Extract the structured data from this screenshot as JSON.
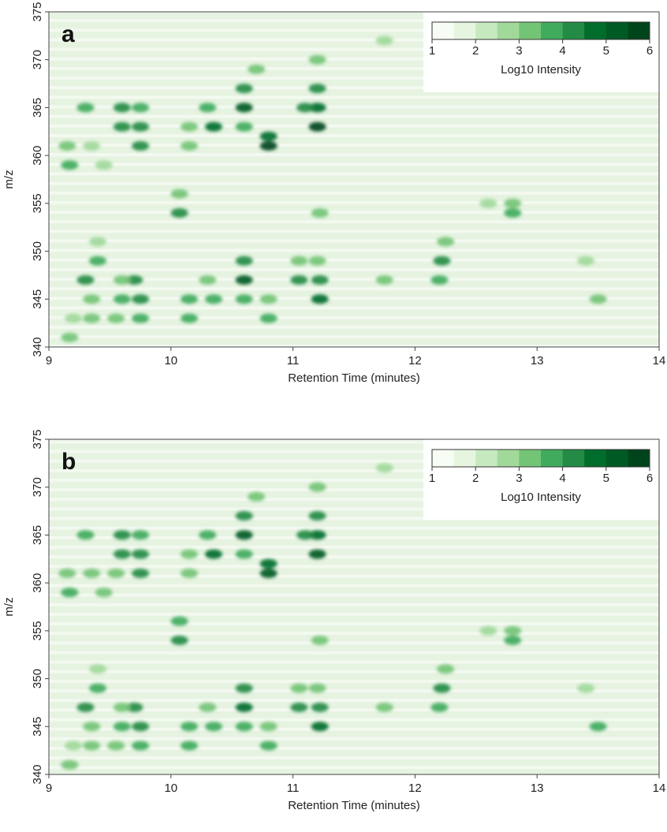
{
  "chart_data": [
    {
      "type": "heatmap",
      "panel_label": "a",
      "xlabel": "Retention Time (minutes)",
      "ylabel": "m/z",
      "xlim": [
        9,
        14
      ],
      "ylim": [
        340,
        375
      ],
      "xticks": [
        9,
        10,
        11,
        12,
        13,
        14
      ],
      "yticks": [
        340,
        345,
        350,
        355,
        360,
        365,
        370,
        375
      ],
      "colorbar": {
        "label": "Log10 Intensity",
        "lim": [
          1,
          6
        ],
        "ticks": [
          1,
          2,
          3,
          4,
          5,
          6
        ],
        "colors": [
          "#f7fcf5",
          "#e5f5e0",
          "#c7e9c0",
          "#a1d99b",
          "#74c476",
          "#41ab5d",
          "#238b45",
          "#006d2c",
          "#005a24",
          "#00441b"
        ]
      },
      "points": {
        "x": [
          10.6,
          10.6,
          10.6,
          10.8,
          10.8,
          11.2,
          11.2,
          11.2,
          11.1,
          10.35,
          10.3,
          9.6,
          9.6,
          9.75,
          9.75,
          9.75,
          9.3,
          9.15,
          9.17,
          9.45,
          9.35,
          10.07,
          10.07,
          10.15,
          10.15,
          10.7,
          9.3,
          9.4,
          9.4,
          9.6,
          9.7,
          9.75,
          9.75,
          9.6,
          9.55,
          9.35,
          9.35,
          9.17,
          9.2,
          10.15,
          10.15,
          10.35,
          10.3,
          10.6,
          10.6,
          10.6,
          10.8,
          10.8,
          11.05,
          11.05,
          11.22,
          11.22,
          11.2,
          11.22,
          11.75,
          12.22,
          12.2,
          12.25,
          12.8,
          12.8,
          13.5,
          13.4,
          12.6,
          11.75,
          11.2
        ],
        "y": [
          365,
          367,
          363,
          361,
          362,
          363,
          365,
          367,
          365,
          363,
          365,
          365,
          363,
          363,
          361,
          365,
          365,
          361,
          359,
          359,
          361,
          354,
          356,
          361,
          363,
          369,
          347,
          349,
          351,
          345,
          347,
          345,
          343,
          347,
          343,
          345,
          343,
          341,
          343,
          345,
          343,
          345,
          347,
          347,
          349,
          345,
          343,
          345,
          347,
          349,
          345,
          347,
          349,
          354,
          347,
          349,
          347,
          351,
          354,
          355,
          345,
          349,
          355,
          372,
          370
        ],
        "values": [
          5.2,
          4.2,
          3.8,
          5.5,
          4.5,
          5.5,
          4.5,
          4.0,
          4.3,
          4.8,
          3.5,
          4.2,
          4.2,
          4.0,
          4.3,
          3.5,
          3.5,
          3.2,
          3.8,
          2.8,
          2.8,
          4.2,
          3.4,
          3.0,
          3.0,
          3.2,
          4.0,
          3.5,
          2.5,
          3.5,
          4.2,
          4.4,
          3.8,
          3.2,
          3.0,
          3.0,
          3.0,
          3.4,
          2.8,
          3.8,
          3.6,
          3.8,
          3.0,
          5.0,
          4.0,
          3.8,
          3.6,
          3.2,
          4.3,
          3.2,
          4.6,
          4.0,
          3.3,
          3.0,
          3.0,
          4.2,
          3.6,
          3.2,
          3.6,
          3.2,
          3.4,
          2.7,
          2.6,
          2.5,
          3.0
        ]
      }
    },
    {
      "type": "heatmap",
      "panel_label": "b",
      "xlabel": "Retention Time (minutes)",
      "ylabel": "m/z",
      "xlim": [
        9,
        14
      ],
      "ylim": [
        340,
        375
      ],
      "xticks": [
        9,
        10,
        11,
        12,
        13,
        14
      ],
      "yticks": [
        340,
        345,
        350,
        355,
        360,
        365,
        370,
        375
      ],
      "colorbar": {
        "label": "Log10 Intensity",
        "lim": [
          1,
          6
        ],
        "ticks": [
          1,
          2,
          3,
          4,
          5,
          6
        ],
        "colors": [
          "#f7fcf5",
          "#e5f5e0",
          "#c7e9c0",
          "#a1d99b",
          "#74c476",
          "#41ab5d",
          "#238b45",
          "#006d2c",
          "#005a24",
          "#00441b"
        ]
      },
      "points": {
        "x": [
          10.6,
          10.6,
          10.6,
          10.8,
          10.8,
          11.2,
          11.2,
          11.2,
          11.1,
          10.35,
          10.3,
          9.6,
          9.6,
          9.75,
          9.75,
          9.75,
          9.3,
          9.15,
          9.17,
          9.45,
          9.35,
          10.07,
          10.07,
          10.15,
          10.15,
          10.7,
          9.3,
          9.4,
          9.4,
          9.6,
          9.7,
          9.75,
          9.75,
          9.6,
          9.55,
          9.35,
          9.35,
          9.17,
          9.2,
          10.15,
          10.15,
          10.35,
          10.3,
          10.6,
          10.6,
          10.6,
          10.8,
          10.8,
          11.05,
          11.05,
          11.22,
          11.22,
          11.2,
          11.22,
          11.75,
          12.22,
          12.2,
          12.25,
          12.8,
          12.8,
          13.5,
          13.4,
          12.6,
          11.75,
          11.2,
          9.55
        ],
        "y": [
          365,
          367,
          363,
          361,
          362,
          363,
          365,
          367,
          365,
          363,
          365,
          365,
          363,
          363,
          361,
          365,
          365,
          361,
          359,
          359,
          361,
          354,
          356,
          361,
          363,
          369,
          347,
          349,
          351,
          345,
          347,
          345,
          343,
          347,
          343,
          345,
          343,
          341,
          343,
          345,
          343,
          345,
          347,
          347,
          349,
          345,
          343,
          345,
          347,
          349,
          345,
          347,
          349,
          354,
          347,
          349,
          347,
          351,
          354,
          355,
          345,
          349,
          355,
          372,
          370,
          361
        ],
        "values": [
          5.0,
          4.3,
          3.9,
          5.4,
          4.6,
          5.3,
          4.5,
          4.0,
          4.3,
          4.6,
          3.6,
          4.1,
          4.3,
          4.0,
          4.2,
          3.6,
          3.6,
          3.4,
          3.7,
          3.0,
          3.0,
          4.3,
          3.5,
          3.1,
          3.1,
          3.3,
          4.0,
          3.6,
          2.8,
          3.6,
          4.1,
          4.3,
          3.8,
          3.3,
          3.1,
          3.1,
          3.1,
          3.4,
          2.9,
          3.8,
          3.7,
          3.8,
          3.1,
          4.9,
          4.0,
          3.8,
          3.6,
          3.3,
          4.2,
          3.3,
          4.5,
          4.0,
          3.4,
          3.1,
          3.0,
          4.1,
          3.6,
          3.3,
          3.7,
          3.3,
          3.5,
          2.8,
          2.8,
          2.6,
          3.1,
          3.0
        ]
      }
    }
  ]
}
